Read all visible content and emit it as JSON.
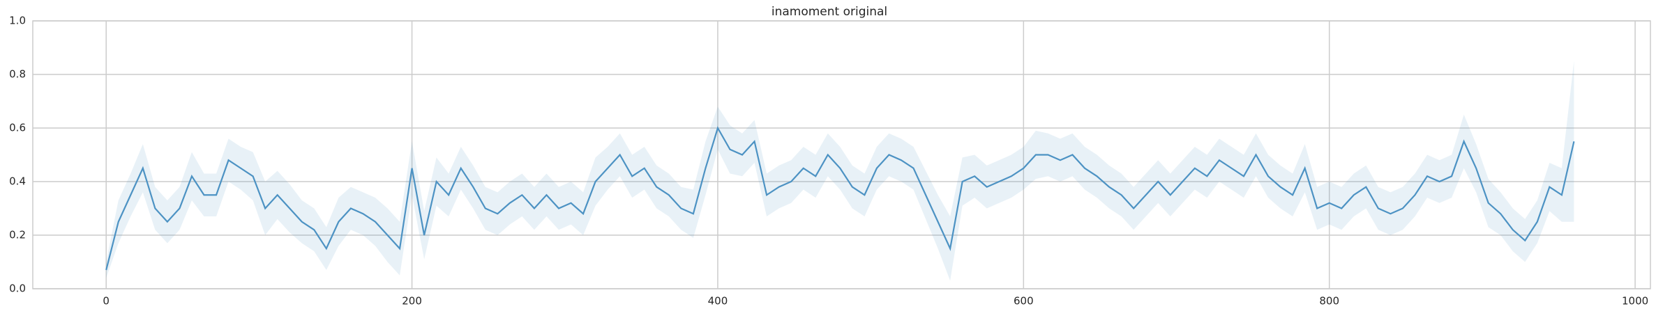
{
  "chart_data": {
    "type": "line",
    "title": "inamoment original",
    "x": [
      0,
      8,
      16,
      24,
      32,
      40,
      48,
      56,
      64,
      72,
      80,
      88,
      96,
      104,
      112,
      120,
      128,
      136,
      144,
      152,
      160,
      168,
      176,
      184,
      192,
      200,
      208,
      216,
      224,
      232,
      240,
      248,
      256,
      264,
      272,
      280,
      288,
      296,
      304,
      312,
      320,
      328,
      336,
      344,
      352,
      360,
      368,
      376,
      384,
      392,
      400,
      408,
      416,
      424,
      432,
      440,
      448,
      456,
      464,
      472,
      480,
      488,
      496,
      504,
      512,
      520,
      528,
      536,
      544,
      552,
      560,
      568,
      576,
      584,
      592,
      600,
      608,
      616,
      624,
      632,
      640,
      648,
      656,
      664,
      672,
      680,
      688,
      696,
      704,
      712,
      720,
      728,
      736,
      744,
      752,
      760,
      768,
      776,
      784,
      792,
      800,
      808,
      816,
      824,
      832,
      840,
      848,
      856,
      864,
      872,
      880,
      888,
      896,
      904,
      912,
      920,
      928,
      936,
      944,
      952,
      960
    ],
    "series": [
      {
        "color": "#4c92c3",
        "values": [
          0.07,
          0.25,
          0.35,
          0.45,
          0.3,
          0.25,
          0.3,
          0.42,
          0.35,
          0.35,
          0.48,
          0.45,
          0.42,
          0.3,
          0.35,
          0.3,
          0.25,
          0.22,
          0.15,
          0.25,
          0.3,
          0.28,
          0.25,
          0.2,
          0.15,
          0.45,
          0.2,
          0.4,
          0.35,
          0.45,
          0.38,
          0.3,
          0.28,
          0.32,
          0.35,
          0.3,
          0.35,
          0.3,
          0.32,
          0.28,
          0.4,
          0.45,
          0.5,
          0.42,
          0.45,
          0.38,
          0.35,
          0.3,
          0.28,
          0.45,
          0.6,
          0.52,
          0.5,
          0.55,
          0.35,
          0.38,
          0.4,
          0.45,
          0.42,
          0.5,
          0.45,
          0.38,
          0.35,
          0.45,
          0.5,
          0.48,
          0.45,
          0.35,
          0.25,
          0.15,
          0.4,
          0.42,
          0.38,
          0.4,
          0.42,
          0.45,
          0.5,
          0.5,
          0.48,
          0.5,
          0.45,
          0.42,
          0.38,
          0.35,
          0.3,
          0.35,
          0.4,
          0.35,
          0.4,
          0.45,
          0.42,
          0.48,
          0.45,
          0.42,
          0.5,
          0.42,
          0.38,
          0.35,
          0.45,
          0.3,
          0.32,
          0.3,
          0.35,
          0.38,
          0.3,
          0.28,
          0.3,
          0.35,
          0.42,
          0.4,
          0.42,
          0.55,
          0.45,
          0.32,
          0.28,
          0.22,
          0.18,
          0.25,
          0.38,
          0.35,
          0.55
        ],
        "error": [
          0.03,
          0.08,
          0.08,
          0.09,
          0.08,
          0.08,
          0.08,
          0.09,
          0.08,
          0.08,
          0.08,
          0.08,
          0.09,
          0.1,
          0.09,
          0.09,
          0.08,
          0.08,
          0.08,
          0.09,
          0.08,
          0.08,
          0.09,
          0.1,
          0.1,
          0.1,
          0.09,
          0.09,
          0.08,
          0.08,
          0.08,
          0.08,
          0.08,
          0.08,
          0.08,
          0.08,
          0.08,
          0.08,
          0.08,
          0.08,
          0.09,
          0.08,
          0.08,
          0.08,
          0.08,
          0.08,
          0.08,
          0.08,
          0.09,
          0.1,
          0.08,
          0.09,
          0.08,
          0.08,
          0.08,
          0.08,
          0.08,
          0.08,
          0.08,
          0.08,
          0.08,
          0.08,
          0.08,
          0.08,
          0.08,
          0.08,
          0.08,
          0.09,
          0.1,
          0.12,
          0.09,
          0.08,
          0.08,
          0.08,
          0.08,
          0.08,
          0.09,
          0.08,
          0.08,
          0.08,
          0.08,
          0.08,
          0.08,
          0.08,
          0.08,
          0.08,
          0.08,
          0.08,
          0.08,
          0.08,
          0.08,
          0.08,
          0.08,
          0.08,
          0.08,
          0.08,
          0.08,
          0.08,
          0.09,
          0.08,
          0.08,
          0.08,
          0.08,
          0.08,
          0.08,
          0.08,
          0.08,
          0.08,
          0.08,
          0.08,
          0.08,
          0.1,
          0.09,
          0.09,
          0.08,
          0.08,
          0.08,
          0.08,
          0.09,
          0.1,
          0.3
        ]
      }
    ],
    "xlim": [
      -48,
      1010
    ],
    "ylim": [
      0,
      1
    ],
    "xticks": [
      0,
      200,
      400,
      600,
      800,
      1000
    ],
    "yticks": [
      {
        "value": 0,
        "label": "0.0"
      },
      {
        "value": 0.2,
        "label": "0.2"
      },
      {
        "value": 0.4,
        "label": "0.4"
      },
      {
        "value": 0.6,
        "label": "0.6"
      },
      {
        "value": 0.8,
        "label": "0.8"
      },
      {
        "value": 1,
        "label": "1.0"
      }
    ],
    "grid": true
  }
}
